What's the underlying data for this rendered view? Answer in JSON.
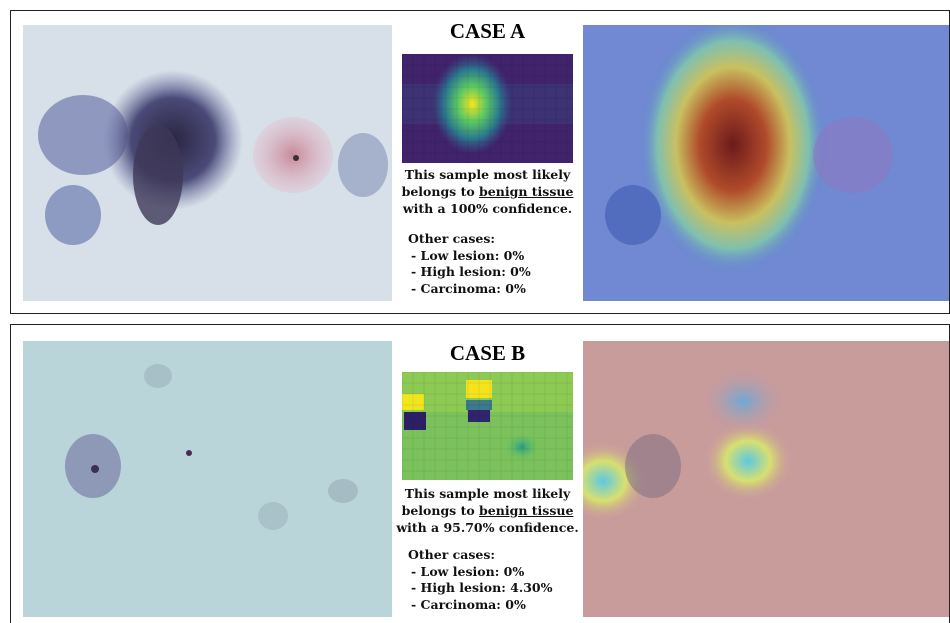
{
  "cases": [
    {
      "title": "CASE A",
      "caption": {
        "line1": "This sample most likely",
        "line2_prefix": "belongs to ",
        "line2_emphasis": "benign tissue",
        "line3": "with a 100% confidence."
      },
      "other_cases": {
        "heading": "Other cases:",
        "items": [
          "- Low lesion: 0%",
          "- High lesion: 0%",
          "- Carcinoma: 0%"
        ]
      }
    },
    {
      "title": "CASE B",
      "caption": {
        "line1": "This sample most likely",
        "line2_prefix": "belongs to ",
        "line2_emphasis": "benign tissue",
        "line3": "with a 95.70% confidence."
      },
      "other_cases": {
        "heading": "Other cases:",
        "items": [
          "- Low lesion: 0%",
          "- High lesion: 4.30%",
          "- Carcinoma: 0%"
        ]
      }
    }
  ]
}
